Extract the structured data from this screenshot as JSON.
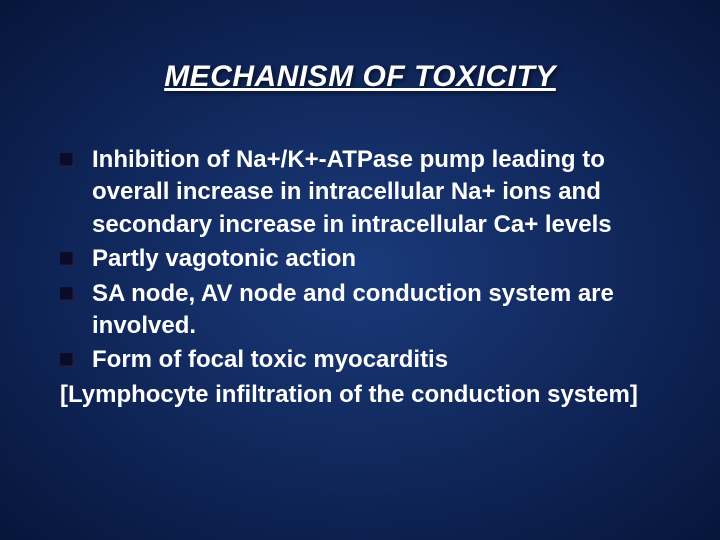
{
  "slide": {
    "title": "MECHANISM OF TOXICITY",
    "bullets": [
      "Inhibition of  Na+/K+-ATPase pump leading to overall increase in intracellular Na+ ions and secondary increase in intracellular Ca+ levels",
      "Partly  vagotonic action",
      "SA node, AV node and conduction system are involved.",
      "Form of focal toxic myocarditis"
    ],
    "footnote": "[Lymphocyte infiltration of the conduction system]"
  },
  "style": {
    "background_gradient_center": "#1a3a7a",
    "background_gradient_mid": "#0f2456",
    "background_gradient_edge": "#06153a",
    "text_color": "#ffffff",
    "bullet_color": "#0a0a2a",
    "title_fontsize": 30,
    "body_fontsize": 24,
    "title_style": "bold italic underline",
    "body_style": "bold"
  }
}
